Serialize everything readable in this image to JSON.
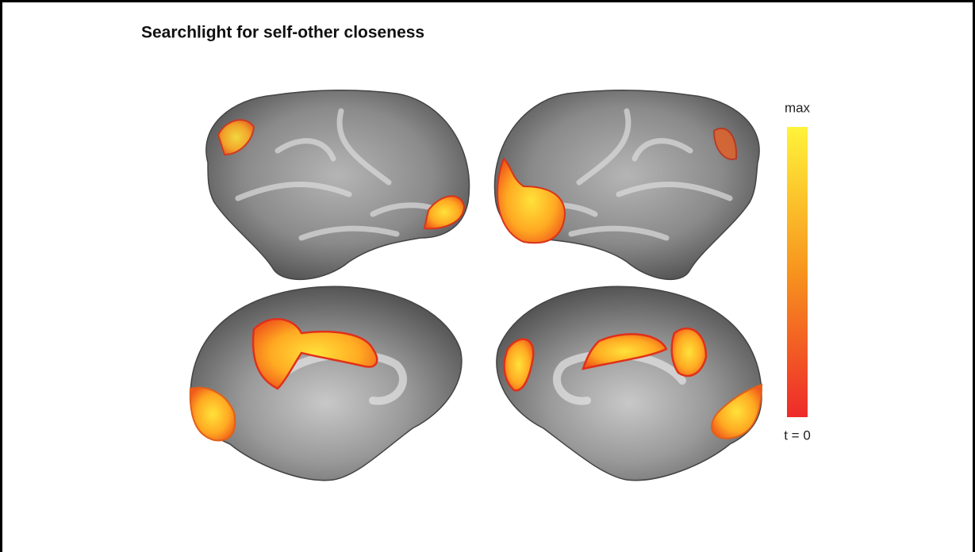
{
  "title": "Searchlight for self-other closeness",
  "colorbar": {
    "max_label": "max",
    "min_label": "t = 0"
  }
}
